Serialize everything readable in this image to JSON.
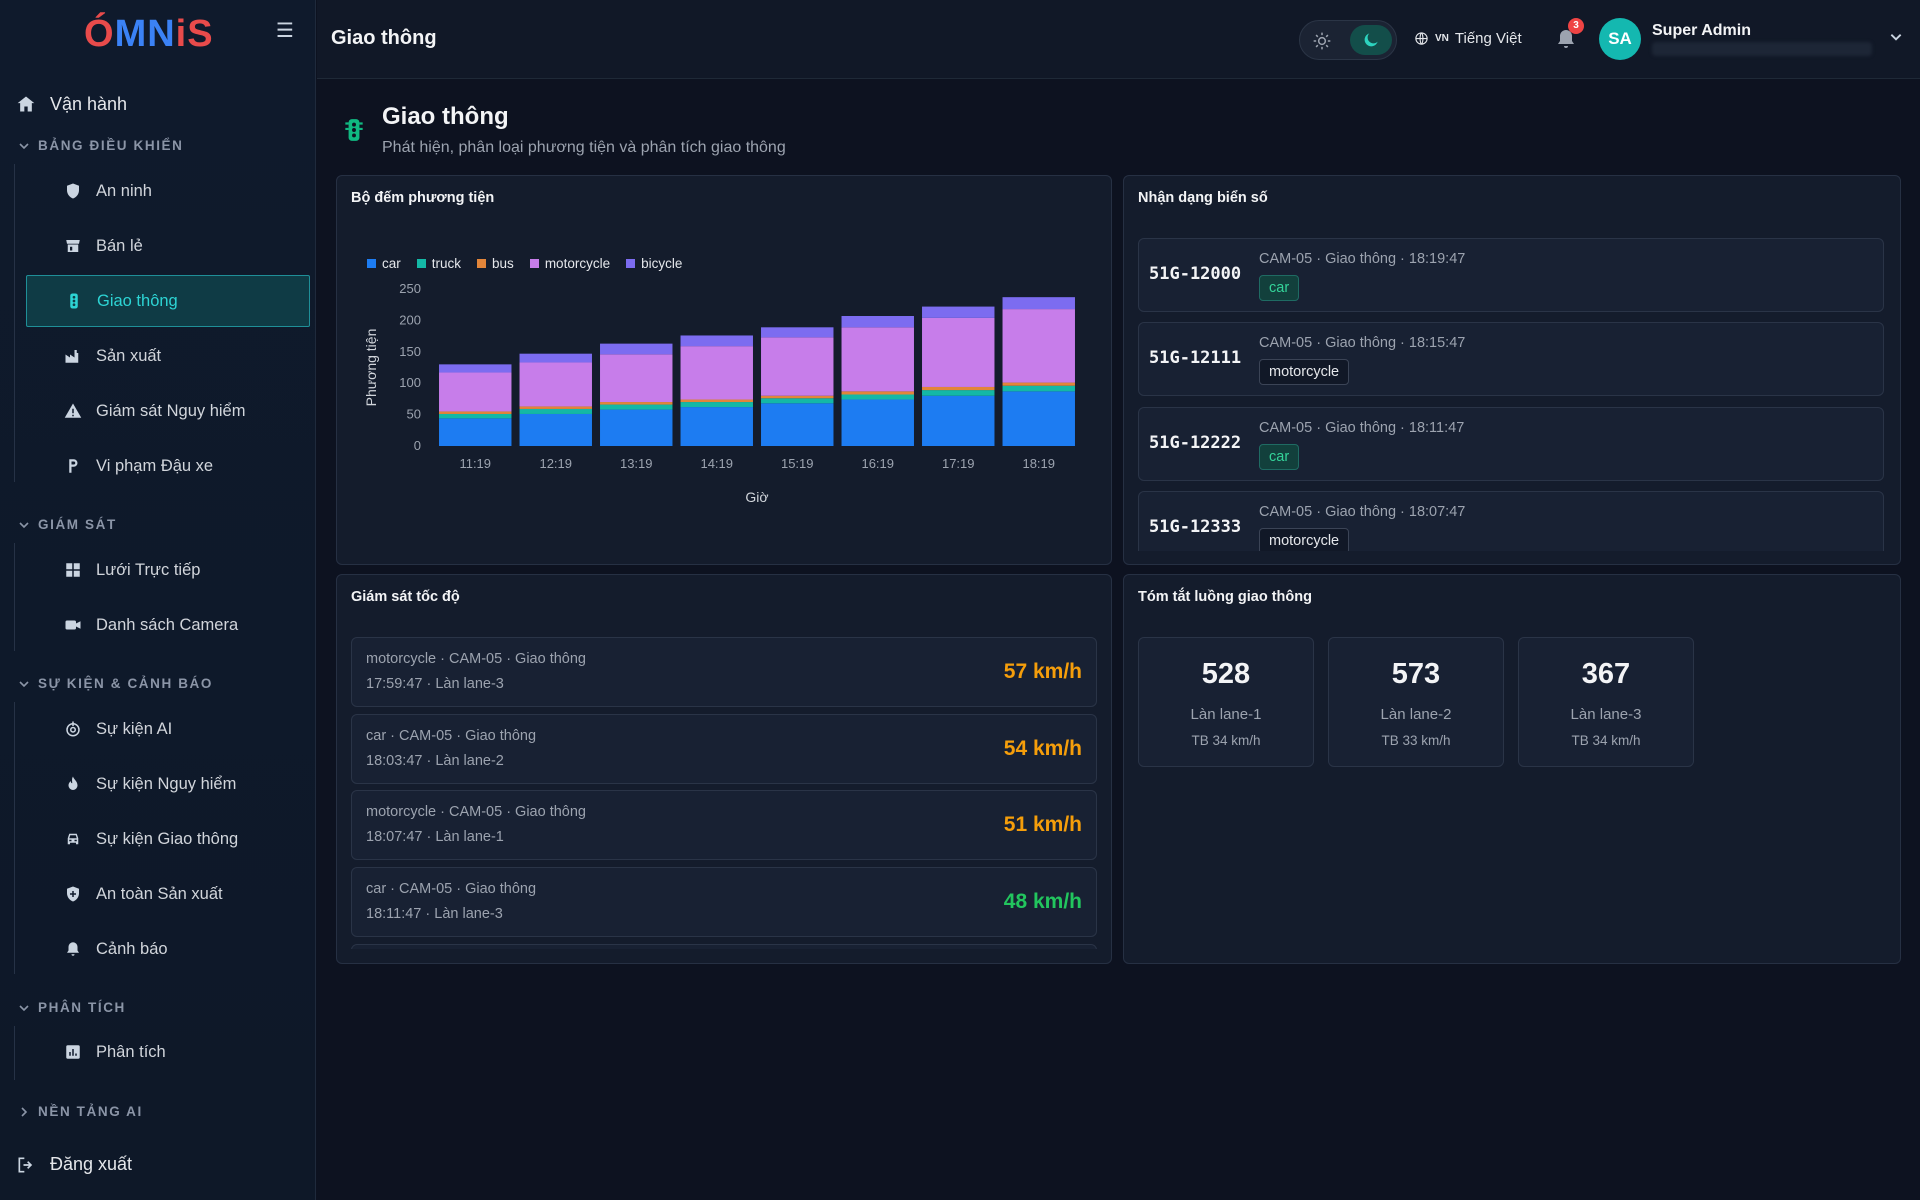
{
  "sidebar": {
    "logo": {
      "part1": "Ó",
      "part2": "MN",
      "part3": "iS"
    },
    "top_item": "Vận hành",
    "sections": [
      {
        "label": "BẢNG ĐIỀU KHIỂN",
        "items": [
          "An ninh",
          "Bán lẻ",
          "Giao thông",
          "Sản xuất",
          "Giám sát Nguy hiểm",
          "Vi phạm Đậu xe"
        ]
      },
      {
        "label": "GIÁM SÁT",
        "items": [
          "Lưới Trực tiếp",
          "Danh sách Camera"
        ]
      },
      {
        "label": "SỰ KIỆN & CẢNH BÁO",
        "items": [
          "Sự kiện AI",
          "Sự kiện Nguy hiểm",
          "Sự kiện Giao thông",
          "An toàn Sản xuất",
          "Cảnh báo"
        ]
      },
      {
        "label": "PHÂN TÍCH",
        "items": [
          "Phân tích"
        ]
      },
      {
        "label": "NỀN TẢNG AI",
        "items": []
      }
    ],
    "active_item": "Giao thông",
    "logout": "Đăng xuất"
  },
  "header": {
    "title": "Giao thông",
    "lang_code": "VN",
    "lang_label": "Tiếng Việt",
    "notifications": "3",
    "avatar": "SA",
    "user_name": "Super Admin"
  },
  "page": {
    "title": "Giao thông",
    "subtitle": "Phát hiện, phân loại phương tiện và phân tích giao thông"
  },
  "vehicle_counter": {
    "title": "Bộ đếm phương tiện"
  },
  "chart_data": {
    "type": "bar",
    "stacked": true,
    "categories": [
      "11:19",
      "12:19",
      "13:19",
      "14:19",
      "15:19",
      "16:19",
      "17:19",
      "18:19"
    ],
    "series": [
      {
        "name": "car",
        "color": "#1d7cf2",
        "values": [
          44,
          51,
          58,
          62,
          68,
          74,
          80,
          87
        ]
      },
      {
        "name": "truck",
        "color": "#14b8a6",
        "values": [
          7,
          8,
          8,
          8,
          8,
          8,
          9,
          9
        ]
      },
      {
        "name": "bus",
        "color": "#e2853a",
        "values": [
          4,
          4,
          4,
          4,
          4,
          5,
          5,
          5
        ]
      },
      {
        "name": "motorcycle",
        "color": "#c77dea",
        "values": [
          62,
          70,
          76,
          85,
          93,
          102,
          110,
          117
        ]
      },
      {
        "name": "bicycle",
        "color": "#7c6cf0",
        "values": [
          13,
          14,
          17,
          17,
          16,
          18,
          18,
          19
        ]
      }
    ],
    "xlabel": "Giờ",
    "ylabel": "Phương tiện",
    "ylim": [
      0,
      250
    ],
    "yticks": [
      0,
      50,
      100,
      150,
      200,
      250
    ],
    "legend": "top-left"
  },
  "plates": {
    "title": "Nhận dạng biển số",
    "rows": [
      {
        "plate": "51G-12000",
        "meta": "CAM-05 · Giao thông · 18:19:47",
        "type": "car"
      },
      {
        "plate": "51G-12111",
        "meta": "CAM-05 · Giao thông · 18:15:47",
        "type": "motorcycle"
      },
      {
        "plate": "51G-12222",
        "meta": "CAM-05 · Giao thông · 18:11:47",
        "type": "car"
      },
      {
        "plate": "51G-12333",
        "meta": "CAM-05 · Giao thông · 18:07:47",
        "type": "motorcycle"
      }
    ]
  },
  "speed": {
    "title": "Giám sát tốc độ",
    "rows": [
      {
        "line1": "motorcycle · CAM-05 · Giao thông",
        "line2": "17:59:47 · Làn lane-3",
        "value": "57 km/h",
        "color": "#f59e0b"
      },
      {
        "line1": "car · CAM-05 · Giao thông",
        "line2": "18:03:47 · Làn lane-2",
        "value": "54 km/h",
        "color": "#f59e0b"
      },
      {
        "line1": "motorcycle · CAM-05 · Giao thông",
        "line2": "18:07:47 · Làn lane-1",
        "value": "51 km/h",
        "color": "#f59e0b"
      },
      {
        "line1": "car · CAM-05 · Giao thông",
        "line2": "18:11:47 · Làn lane-3",
        "value": "48 km/h",
        "color": "#22c55e"
      }
    ]
  },
  "summary": {
    "title": "Tóm tắt luồng giao thông",
    "lanes": [
      {
        "count": "528",
        "name": "Làn lane-1",
        "avg": "TB 34 km/h"
      },
      {
        "count": "573",
        "name": "Làn lane-2",
        "avg": "TB 33 km/h"
      },
      {
        "count": "367",
        "name": "Làn lane-3",
        "avg": "TB 34 km/h"
      }
    ]
  }
}
